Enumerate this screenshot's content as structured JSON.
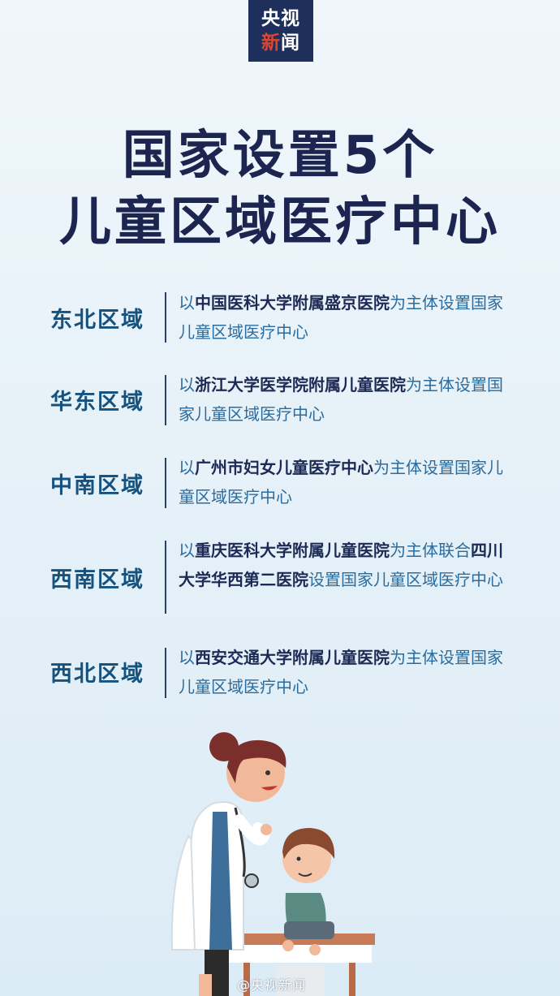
{
  "logo": {
    "line1": "央视",
    "line2_accent": "新",
    "line2_rest": "闻"
  },
  "title": {
    "line1": "国家设置5个",
    "line2": "儿童区域医疗中心"
  },
  "regions": [
    {
      "name": "东北区域",
      "pre": "以",
      "bold": "中国医科大学附属盛京医院",
      "post": "为主体设置国家儿童区域医疗中心"
    },
    {
      "name": "华东区域",
      "pre": "以",
      "bold": "浙江大学医学院附属儿童医院",
      "post": "为主体设置国家儿童区域医疗中心"
    },
    {
      "name": "中南区域",
      "pre": "以",
      "bold": "广州市妇女儿童医疗中心",
      "post": "为主体设置国家儿童区域医疗中心"
    },
    {
      "name": "西南区域",
      "pre": "以",
      "bold": "重庆医科大学附属儿童医院",
      "post": "为主体联合",
      "bold2": "四川大学华西第二医院",
      "post2": "设置国家儿童区域医疗中心"
    },
    {
      "name": "西北区域",
      "pre": "以",
      "bold": "西安交通大学附属儿童医院",
      "post": "为主体设置国家儿童区域医疗中心"
    }
  ],
  "watermark": "@央视新闻",
  "colors": {
    "navy": "#1c2550",
    "region": "#16527e",
    "desc": "#2b6c9e",
    "logo_bg": "#1f2f5c",
    "logo_accent": "#e0452f"
  }
}
